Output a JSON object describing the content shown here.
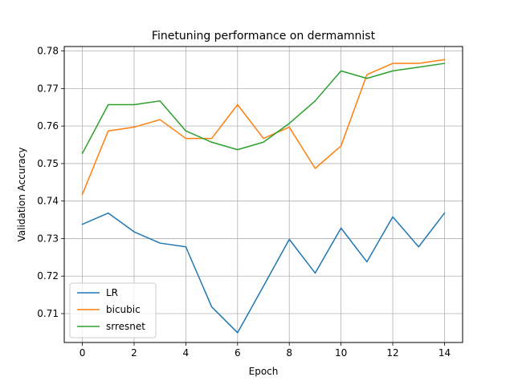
{
  "chart_data": {
    "type": "line",
    "title": "Finetuning performance on dermamnist",
    "xlabel": "Epoch",
    "ylabel": "Validation Accuracy",
    "x": [
      0,
      1,
      2,
      3,
      4,
      5,
      6,
      7,
      8,
      9,
      10,
      11,
      12,
      13,
      14
    ],
    "xlim": [
      -0.7,
      14.7
    ],
    "ylim": [
      0.7023,
      0.7812
    ],
    "xticks": [
      0,
      2,
      4,
      6,
      8,
      10,
      12,
      14
    ],
    "xtick_labels": [
      "0",
      "2",
      "4",
      "6",
      "8",
      "10",
      "12",
      "14"
    ],
    "yticks": [
      0.71,
      0.72,
      0.73,
      0.74,
      0.75,
      0.76,
      0.77,
      0.78
    ],
    "ytick_labels": [
      "0.71",
      "0.72",
      "0.73",
      "0.74",
      "0.75",
      "0.76",
      "0.77",
      "0.78"
    ],
    "grid": true,
    "legend_position": "lower-left",
    "series": [
      {
        "name": "LR",
        "color": "#1f77b4",
        "values": [
          0.7338,
          0.7368,
          0.7318,
          0.7288,
          0.7278,
          0.7118,
          0.7049,
          0.7173,
          0.7298,
          0.7208,
          0.7328,
          0.7238,
          0.7358,
          0.7278,
          0.7368
        ]
      },
      {
        "name": "bicubic",
        "color": "#ff7f0e",
        "values": [
          0.7418,
          0.7587,
          0.7597,
          0.7617,
          0.7567,
          0.7567,
          0.7657,
          0.7567,
          0.7597,
          0.7487,
          0.7547,
          0.7737,
          0.7767,
          0.7767,
          0.7777
        ]
      },
      {
        "name": "srresnet",
        "color": "#2ca02c",
        "values": [
          0.7527,
          0.7657,
          0.7657,
          0.7667,
          0.7587,
          0.7557,
          0.7537,
          0.7557,
          0.7607,
          0.7667,
          0.7747,
          0.7727,
          0.7747,
          0.7757,
          0.7767
        ]
      }
    ]
  }
}
